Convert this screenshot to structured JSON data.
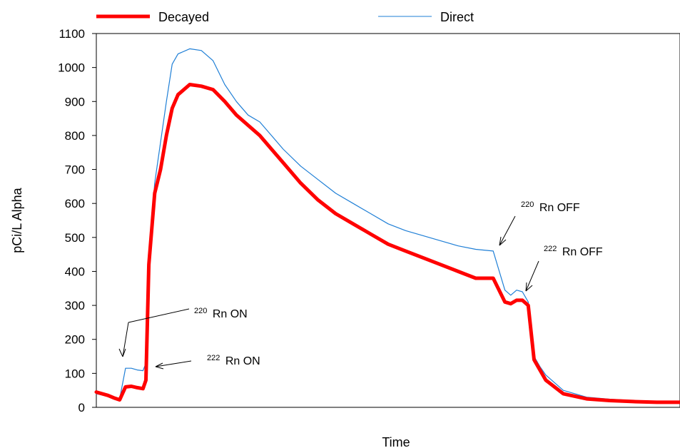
{
  "chart_data": {
    "type": "line",
    "title": "",
    "xlabel": "Time",
    "ylabel": "pCi/L Alpha",
    "ylim": [
      0,
      1100
    ],
    "yticks": [
      0,
      100,
      200,
      300,
      400,
      500,
      600,
      700,
      800,
      900,
      1000,
      1100
    ],
    "xlim": [
      0,
      1
    ],
    "grid": false,
    "legend_position": "top",
    "x": [
      0.0,
      0.02,
      0.03,
      0.04,
      0.05,
      0.06,
      0.07,
      0.08,
      0.085,
      0.09,
      0.1,
      0.11,
      0.12,
      0.13,
      0.14,
      0.16,
      0.18,
      0.2,
      0.22,
      0.24,
      0.26,
      0.28,
      0.3,
      0.32,
      0.35,
      0.38,
      0.41,
      0.44,
      0.47,
      0.5,
      0.53,
      0.56,
      0.59,
      0.62,
      0.65,
      0.68,
      0.7,
      0.71,
      0.72,
      0.73,
      0.74,
      0.75,
      0.76,
      0.77,
      0.8,
      0.84,
      0.88,
      0.92,
      0.96,
      1.0
    ],
    "series": [
      {
        "name": "Decayed",
        "color": "#ff0000",
        "values": [
          45,
          35,
          28,
          22,
          60,
          62,
          58,
          55,
          80,
          420,
          630,
          700,
          800,
          880,
          920,
          950,
          945,
          935,
          900,
          860,
          830,
          800,
          760,
          720,
          660,
          610,
          570,
          540,
          510,
          480,
          460,
          440,
          420,
          400,
          380,
          380,
          310,
          305,
          315,
          315,
          300,
          140,
          110,
          80,
          40,
          25,
          20,
          17,
          15,
          15
        ]
      },
      {
        "name": "Direct",
        "color": "#1f7fd6",
        "values": [
          40,
          32,
          28,
          25,
          115,
          115,
          110,
          108,
          130,
          440,
          660,
          780,
          900,
          1010,
          1040,
          1055,
          1050,
          1020,
          950,
          900,
          860,
          840,
          800,
          760,
          710,
          670,
          630,
          600,
          570,
          540,
          520,
          505,
          490,
          475,
          465,
          460,
          345,
          330,
          345,
          340,
          310,
          150,
          120,
          95,
          50,
          30,
          24,
          20,
          18,
          18
        ]
      }
    ],
    "annotations": [
      {
        "sup": "220",
        "text": "Rn ON"
      },
      {
        "sup": "222",
        "text": "Rn ON"
      },
      {
        "sup": "220",
        "text": "Rn OFF"
      },
      {
        "sup": "222",
        "text": "Rn OFF"
      }
    ]
  }
}
